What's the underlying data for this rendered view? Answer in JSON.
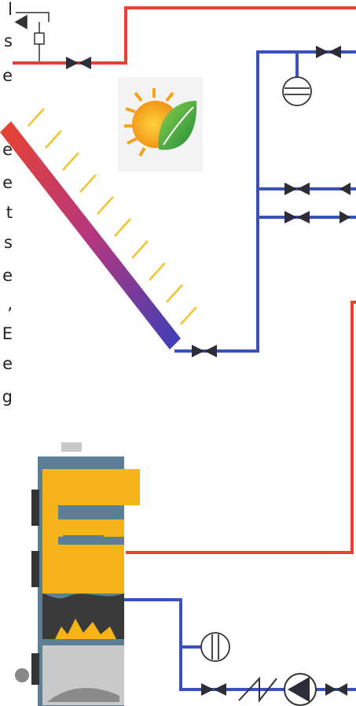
{
  "edge_text": [
    "l",
    "s",
    "e",
    "e",
    "e",
    "t",
    "s",
    "e",
    ",",
    "E",
    "e",
    "g"
  ],
  "colors": {
    "hot_pipe": "#e8432f",
    "cold_pipe": "#3a53b4",
    "valve": "#2d2d3a",
    "sun_rays": "#f2c230",
    "collector_hot": "#e8432f",
    "collector_cold": "#3a3fb8",
    "boiler_body": "#5d7f95",
    "boiler_fuel": "#f6b31a",
    "boiler_fire": "#3a3a3a",
    "boiler_ash": "#c9c9c9",
    "logo_orange": "#f4a31b",
    "logo_green": "#3aa64a"
  },
  "components": {
    "solar_collector": "solar-collector-panel",
    "logo": "sun-leaf-logo-icon",
    "boiler": "solid-fuel-boiler",
    "expansion_vessel": "expansion-vessel-icon",
    "pump": "circulation-pump-icon",
    "check_valve": "check-valve-icon",
    "gauge": "gauge-icon",
    "temperature_sensor": "sensor-icon"
  }
}
